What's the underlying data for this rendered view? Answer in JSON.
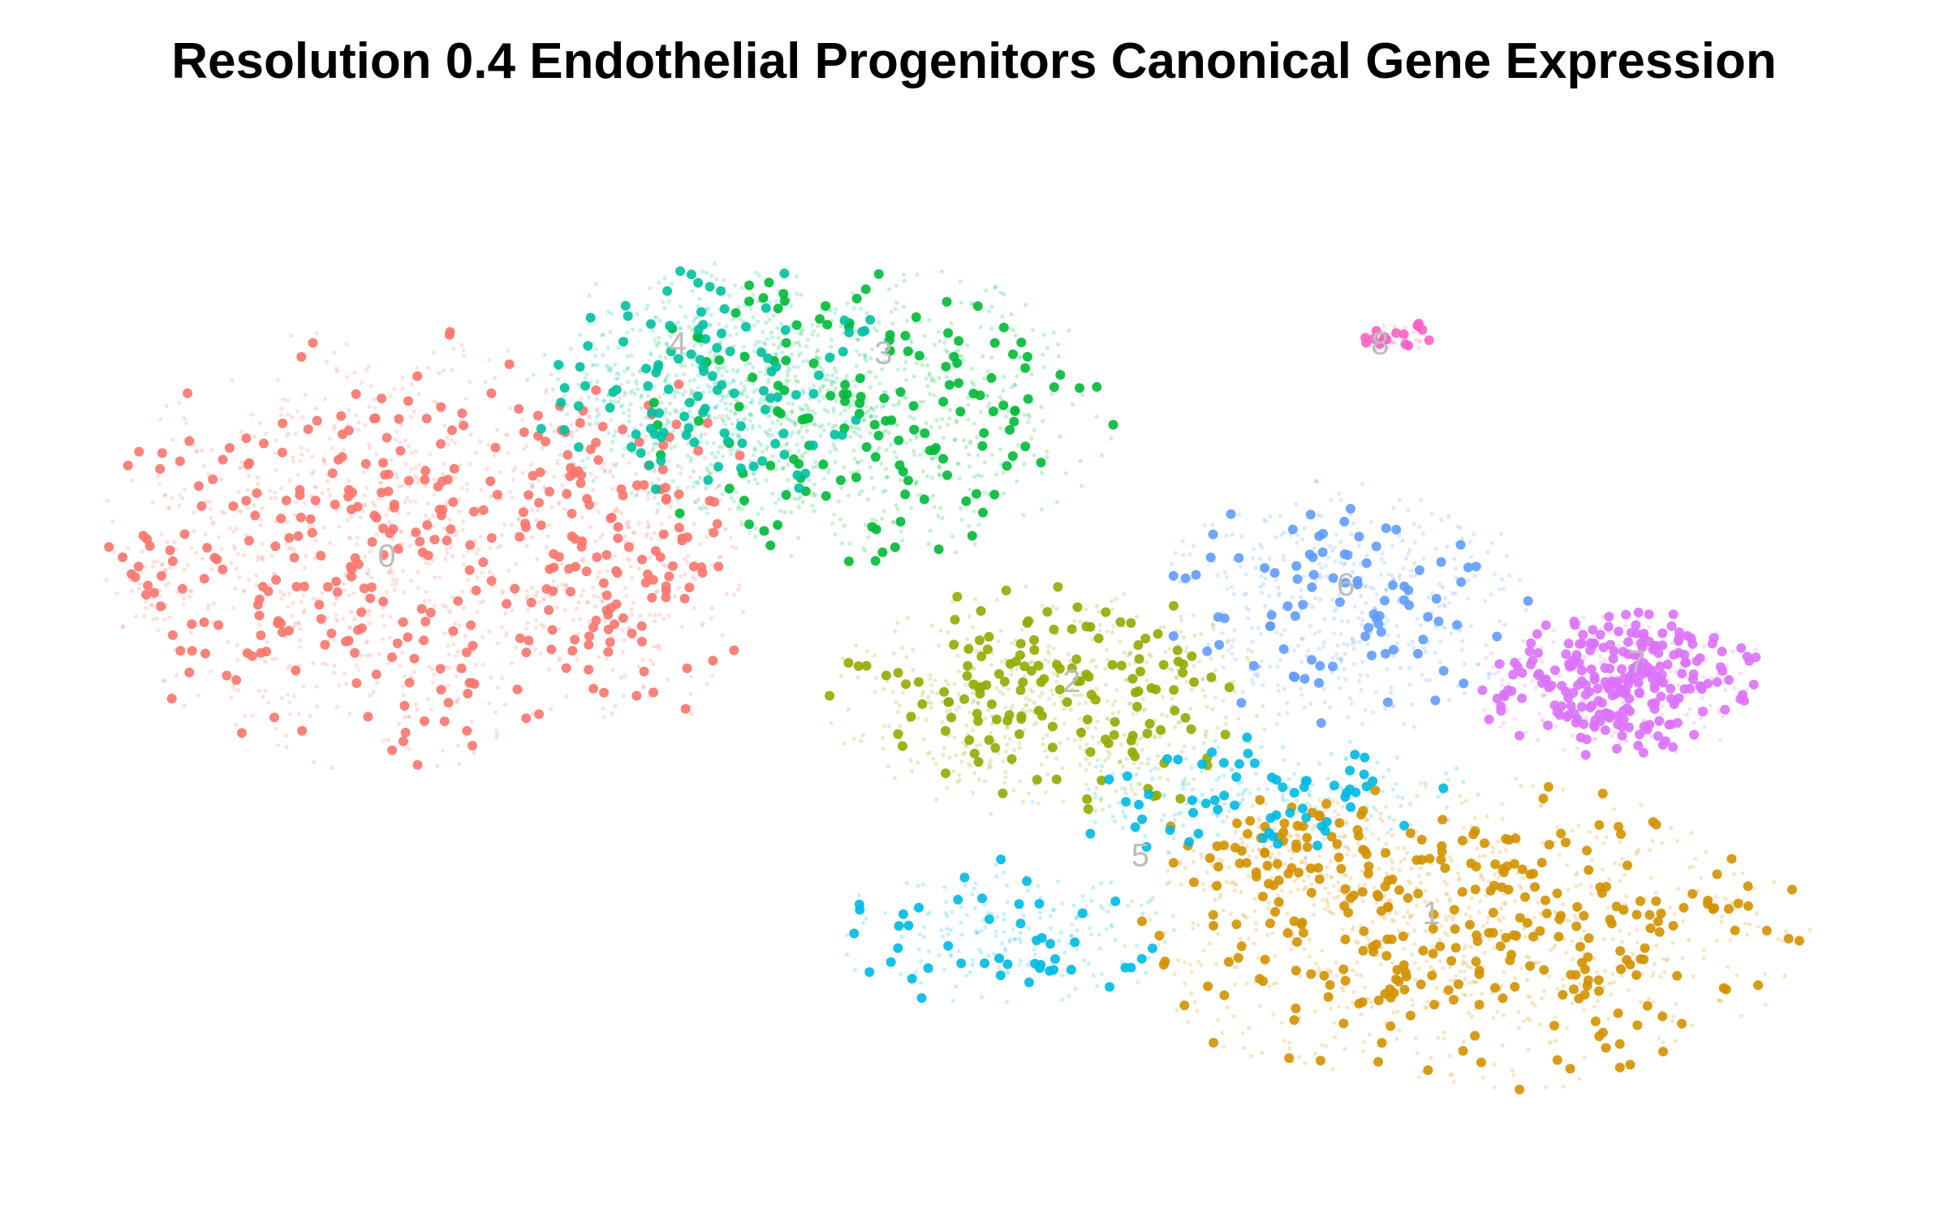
{
  "chart_data": {
    "type": "scatter",
    "title": "Resolution 0.4 Endothelial Progenitors Canonical Gene Expression",
    "xlabel": "",
    "ylabel": "",
    "grid": false,
    "axes_visible": false,
    "legend": "none",
    "xlim": [
      0,
      100
    ],
    "ylim": [
      0,
      100
    ],
    "highlight_layer": "expressing cells drawn as larger solid points",
    "background_layer": "remaining cells drawn as small faded points",
    "series": [
      {
        "label": "0",
        "color": "#F8766D",
        "label_pos": [
          15,
          59
        ],
        "regions": [
          {
            "cx": 15,
            "cy": 60,
            "rx": 15,
            "ry": 21,
            "weight": 1
          },
          {
            "cx": 30,
            "cy": 60,
            "rx": 6,
            "ry": 17,
            "weight": 0.3
          },
          {
            "cx": 1,
            "cy": 57,
            "rx": 2,
            "ry": 6,
            "weight": 0.04
          }
        ],
        "faint": 1100,
        "solid": 380
      },
      {
        "label": "1",
        "color": "#D39200",
        "label_pos": [
          76,
          22
        ],
        "regions": [
          {
            "cx": 78,
            "cy": 20,
            "rx": 18,
            "ry": 15,
            "weight": 1
          },
          {
            "cx": 68,
            "cy": 28,
            "rx": 8,
            "ry": 6,
            "weight": 0.2
          }
        ],
        "faint": 850,
        "solid": 330
      },
      {
        "label": "2",
        "color": "#93AA00",
        "label_pos": [
          55,
          46
        ],
        "regions": [
          {
            "cx": 54,
            "cy": 44,
            "rx": 12,
            "ry": 11,
            "weight": 1
          }
        ],
        "faint": 520,
        "solid": 150
      },
      {
        "label": "3",
        "color": "#00BA38",
        "label_pos": [
          44,
          80
        ],
        "regions": [
          {
            "cx": 43,
            "cy": 74,
            "rx": 13,
            "ry": 14,
            "weight": 1
          }
        ],
        "faint": 650,
        "solid": 150
      },
      {
        "label": "4",
        "color": "#00C19F",
        "label_pos": [
          32,
          81
        ],
        "regions": [
          {
            "cx": 34,
            "cy": 77,
            "rx": 10,
            "ry": 12,
            "weight": 1
          }
        ],
        "faint": 600,
        "solid": 110
      },
      {
        "label": "5",
        "color": "#00B9E3",
        "label_pos": [
          59,
          28
        ],
        "regions": [
          {
            "cx": 51,
            "cy": 20,
            "rx": 9,
            "ry": 7,
            "weight": 0.8
          },
          {
            "cx": 66,
            "cy": 34,
            "rx": 12,
            "ry": 6,
            "weight": 1
          }
        ],
        "faint": 380,
        "solid": 110
      },
      {
        "label": "6",
        "color": "#619CFF",
        "label_pos": [
          71,
          56
        ],
        "regions": [
          {
            "cx": 71,
            "cy": 54,
            "rx": 10,
            "ry": 12,
            "weight": 1
          }
        ],
        "faint": 420,
        "solid": 90
      },
      {
        "label": "7",
        "color": "#DB72FB",
        "label_pos": [
          88,
          48
        ],
        "regions": [
          {
            "cx": 87,
            "cy": 46,
            "rx": 8,
            "ry": 7,
            "weight": 1
          }
        ],
        "faint": 220,
        "solid": 250
      },
      {
        "label": "8",
        "color": "#FF61C3",
        "label_pos": [
          73,
          81
        ],
        "regions": [
          {
            "cx": 74,
            "cy": 82,
            "rx": 2,
            "ry": 1.5,
            "weight": 1
          }
        ],
        "faint": 20,
        "solid": 18
      }
    ]
  }
}
